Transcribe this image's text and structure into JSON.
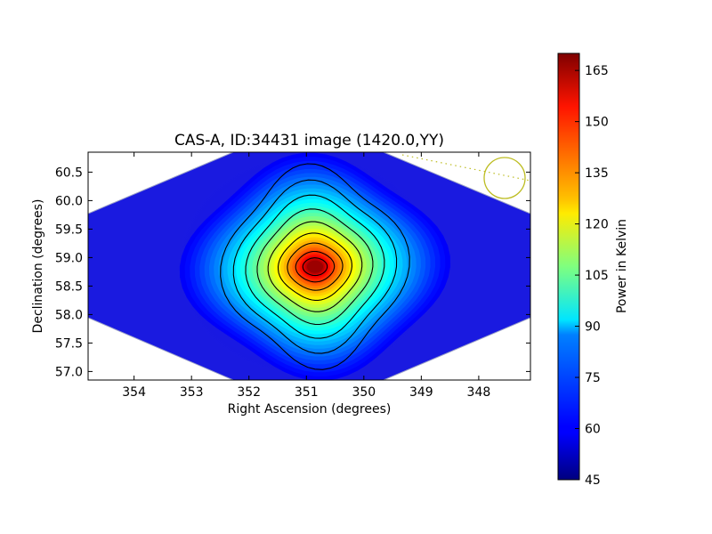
{
  "chart_data": {
    "type": "heatmap",
    "title": "CAS-A, ID:34431 image (1420.0,YY)",
    "xlabel": "Right Ascension (degrees)",
    "ylabel": "Declination (degrees)",
    "x_axis_reversed": true,
    "xlim": [
      354.8,
      347.1
    ],
    "ylim": [
      56.85,
      60.85
    ],
    "x_ticks": [
      "354",
      "353",
      "352",
      "351",
      "350",
      "349",
      "348"
    ],
    "y_ticks": [
      "57.0",
      "57.5",
      "58.0",
      "58.5",
      "59.0",
      "59.5",
      "60.0",
      "60.5"
    ],
    "source_peak": {
      "ra": 350.85,
      "dec": 58.84
    },
    "colormap": "jet",
    "colorbar": {
      "label": "Power in Kelvin",
      "range": [
        45,
        170
      ],
      "ticks": [
        "45",
        "60",
        "75",
        "90",
        "105",
        "120",
        "135",
        "150",
        "165"
      ]
    },
    "contours": {
      "count": 9,
      "color": "#000000"
    },
    "beam_marker": {
      "type": "circle",
      "color": "#bdbd22"
    },
    "grid": false,
    "legend": "none"
  }
}
